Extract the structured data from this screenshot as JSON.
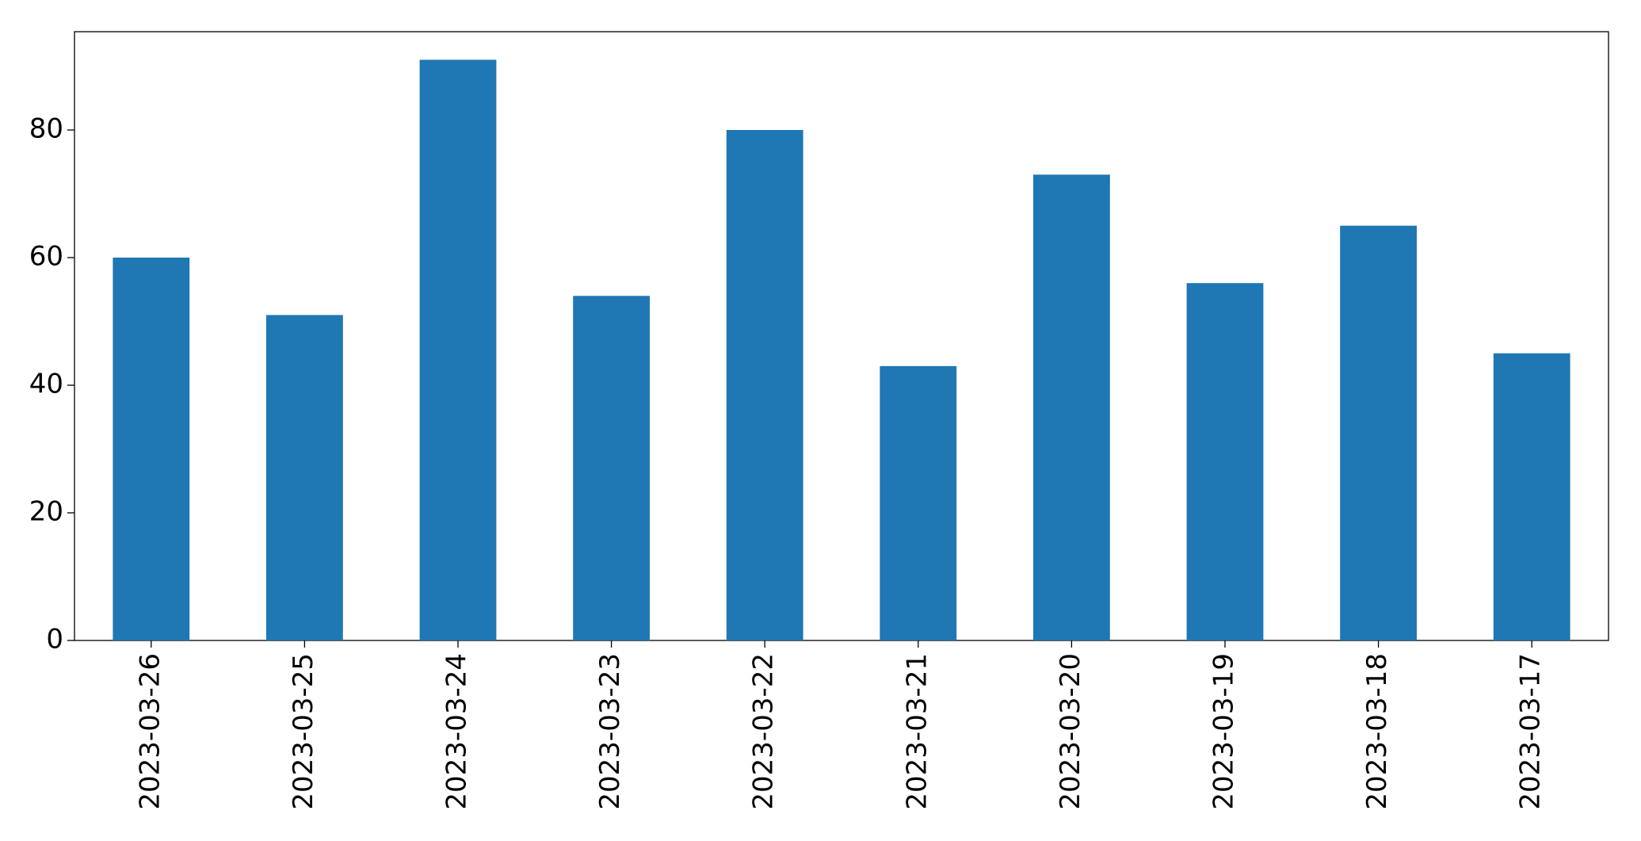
{
  "chart_data": {
    "type": "bar",
    "categories": [
      "2023-03-26",
      "2023-03-25",
      "2023-03-24",
      "2023-03-23",
      "2023-03-22",
      "2023-03-21",
      "2023-03-20",
      "2023-03-19",
      "2023-03-18",
      "2023-03-17"
    ],
    "values": [
      60,
      51,
      91,
      54,
      80,
      43,
      73,
      56,
      65,
      45
    ],
    "color": "#1f77b4",
    "ylim": [
      0,
      95.4
    ],
    "yticks": [
      0,
      20,
      40,
      60,
      80
    ],
    "grid": false
  }
}
